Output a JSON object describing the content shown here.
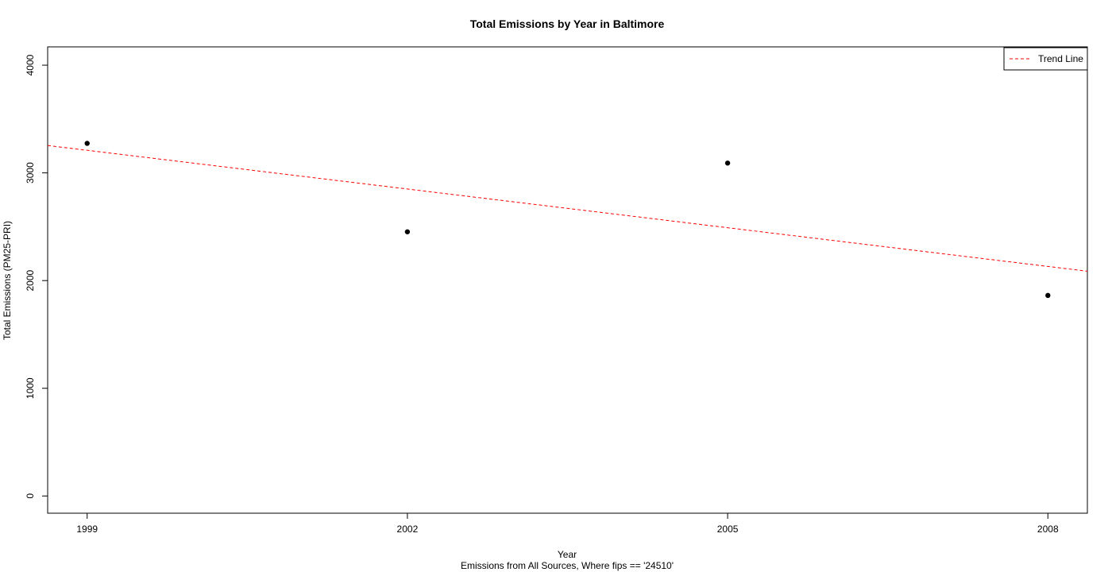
{
  "chart_data": {
    "type": "scatter",
    "title": "Total Emissions by Year in Baltimore",
    "xlabel": "Year",
    "subtitle": "Emissions from All Sources, Where fips == '24510'",
    "ylabel": "Total Emissions (PM25-PRI)",
    "x": [
      1999,
      2002,
      2005,
      2008
    ],
    "y": [
      3274,
      2453,
      3091,
      1862
    ],
    "xlim": [
      1998.63,
      2008.37
    ],
    "ylim": [
      -160,
      4170
    ],
    "x_ticks": [
      1999,
      2002,
      2005,
      2008
    ],
    "y_ticks": [
      0,
      1000,
      2000,
      3000,
      4000
    ],
    "point_color": "#000000",
    "trend_line": {
      "name": "Trend Line",
      "style": "dashed",
      "color": "#ff0000",
      "start": {
        "x": 1998.63,
        "y": 3254
      },
      "end": {
        "x": 2008.37,
        "y": 2087
      }
    },
    "legend": {
      "position": "top-right",
      "entries": [
        {
          "label": "Trend Line",
          "color": "#ff0000",
          "style": "dashed"
        }
      ]
    },
    "grid": false
  }
}
